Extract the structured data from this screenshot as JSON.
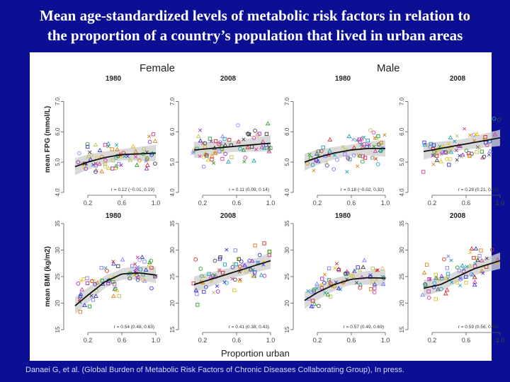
{
  "slide": {
    "title_line1": "Mean age-standardized levels of metabolic risk factors in relation to",
    "title_line2": "the proportion of a country’s population that lived in urban areas",
    "citation": "Danaei G, et al. (Global Burden of Metabolic Risk Factors of Chronic Diseases Collaborating Group), In press."
  },
  "figure": {
    "female_label": "Female",
    "male_label": "Male",
    "xlabel": "Proportion urban"
  },
  "colors": {
    "background": "#0a0f94",
    "curve": "#111111",
    "band": "#cfcfcf"
  },
  "chart_data": [
    {
      "type": "scatter",
      "sex": "Female",
      "year": "1980",
      "ylabel": "mean FPG (mmol/L)",
      "ylim": [
        4.0,
        7.5
      ],
      "yticks": [
        "4.0",
        "5.0",
        "6.0",
        "7.0"
      ],
      "xticks": [
        "0.2",
        "0.6",
        "1.0"
      ],
      "xlim": [
        0,
        1
      ],
      "fit_x": [
        0.05,
        0.2,
        0.4,
        0.6,
        0.8,
        1.0
      ],
      "fit_y": [
        4.85,
        5.0,
        5.15,
        5.25,
        5.27,
        5.3
      ],
      "annotation": "r = 0.12 (−0.01, 0.19)"
    },
    {
      "type": "scatter",
      "sex": "Female",
      "year": "2008",
      "ylabel": "",
      "ylim": [
        4.0,
        7.5
      ],
      "yticks": [
        "4.0",
        "5.0",
        "6.0",
        "7.0"
      ],
      "xticks": [
        "0.2",
        "0.6",
        "1.0"
      ],
      "xlim": [
        0,
        1
      ],
      "fit_x": [
        0.1,
        0.3,
        0.5,
        0.7,
        0.9,
        1.0
      ],
      "fit_y": [
        5.4,
        5.45,
        5.5,
        5.55,
        5.6,
        5.62
      ],
      "annotation": "r = 0.11 (0.09, 0.14)"
    },
    {
      "type": "scatter",
      "sex": "Male",
      "year": "1980",
      "ylabel": "",
      "ylim": [
        4.0,
        7.5
      ],
      "yticks": [
        "4.0",
        "5.0",
        "6.0",
        "7.0"
      ],
      "xticks": [
        "0.2",
        "0.6",
        "1.0"
      ],
      "xlim": [
        0,
        1
      ],
      "fit_x": [
        0.05,
        0.2,
        0.4,
        0.6,
        0.8,
        1.0
      ],
      "fit_y": [
        5.0,
        5.15,
        5.3,
        5.4,
        5.45,
        5.45
      ],
      "annotation": "r = 0.18 (−0.02, 0.32)"
    },
    {
      "type": "scatter",
      "sex": "Male",
      "year": "2008",
      "ylabel": "",
      "ylim": [
        4.0,
        7.5
      ],
      "yticks": [
        "4.0",
        "5.0",
        "6.0",
        "7.0"
      ],
      "xticks": [
        "0.2",
        "0.6",
        "1.0"
      ],
      "xlim": [
        0,
        1
      ],
      "fit_x": [
        0.1,
        0.3,
        0.5,
        0.7,
        0.9,
        1.0
      ],
      "fit_y": [
        5.35,
        5.45,
        5.55,
        5.65,
        5.75,
        5.8
      ],
      "annotation": "r = 0.28 (0.21, 0.34)"
    },
    {
      "type": "scatter",
      "sex": "Female",
      "year": "1980",
      "ylabel": "mean BMI (kg/m2)",
      "ylim": [
        15,
        35
      ],
      "yticks": [
        "15",
        "20",
        "25",
        "30",
        "35"
      ],
      "xticks": [
        "0.2",
        "0.6",
        "1.0"
      ],
      "xlim": [
        0,
        1
      ],
      "fit_x": [
        0.05,
        0.2,
        0.4,
        0.6,
        0.8,
        1.0
      ],
      "fit_y": [
        19.5,
        21.5,
        24.0,
        25.5,
        25.7,
        25.3
      ],
      "annotation": "r = 0.54 (0.48, 0.63)"
    },
    {
      "type": "scatter",
      "sex": "Female",
      "year": "2008",
      "ylabel": "",
      "ylim": [
        15,
        35
      ],
      "yticks": [
        "15",
        "20",
        "25",
        "30",
        "35"
      ],
      "xticks": [
        "0.2",
        "0.6",
        "1.0"
      ],
      "xlim": [
        0,
        1
      ],
      "fit_x": [
        0.1,
        0.3,
        0.5,
        0.7,
        0.9,
        1.0
      ],
      "fit_y": [
        23.5,
        24.5,
        25.5,
        26.5,
        27.5,
        28.0
      ],
      "annotation": "r = 0.41 (0.38, 0.43)"
    },
    {
      "type": "scatter",
      "sex": "Male",
      "year": "1980",
      "ylabel": "",
      "ylim": [
        15,
        35
      ],
      "yticks": [
        "15",
        "20",
        "25",
        "30",
        "35"
      ],
      "xticks": [
        "0.2",
        "0.6",
        "1.0"
      ],
      "xlim": [
        0,
        1
      ],
      "fit_x": [
        0.05,
        0.2,
        0.4,
        0.6,
        0.8,
        1.0
      ],
      "fit_y": [
        20.5,
        22.0,
        23.5,
        24.5,
        24.8,
        24.7
      ],
      "annotation": "r = 0.57 (0.49, 0.69)"
    },
    {
      "type": "scatter",
      "sex": "Male",
      "year": "2008",
      "ylabel": "",
      "ylim": [
        15,
        35
      ],
      "yticks": [
        "15",
        "20",
        "25",
        "30",
        "35"
      ],
      "xticks": [
        "0.2",
        "0.6",
        "1.0"
      ],
      "xlim": [
        0,
        1
      ],
      "fit_x": [
        0.1,
        0.3,
        0.5,
        0.7,
        0.9,
        1.0
      ],
      "fit_y": [
        22.8,
        23.5,
        25.0,
        26.5,
        27.5,
        28.0
      ],
      "annotation": "r = 0.59 (0.56, 0.62)"
    }
  ],
  "marker_colors": [
    "#3a3ad0",
    "#d03030",
    "#2aa02a",
    "#e0c020",
    "#9a30c0",
    "#20a0b0",
    "#e08020",
    "#404040",
    "#d040a0",
    "#8080ff",
    "#c0c060"
  ]
}
